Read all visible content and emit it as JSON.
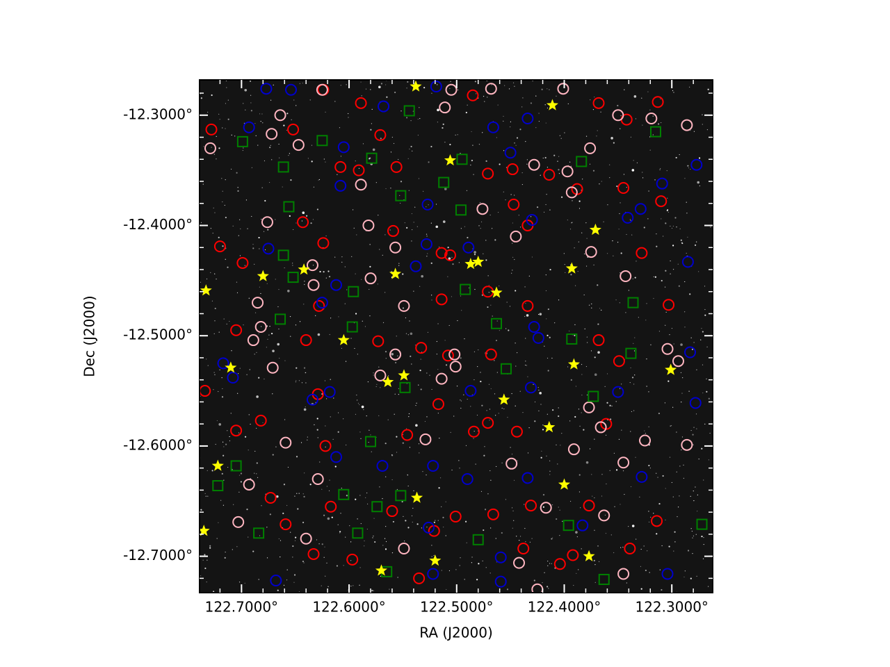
{
  "chart_data": {
    "type": "scatter",
    "x_label": "RA (J2000)",
    "y_label": "Dec (J2000)",
    "xlim": [
      122.739,
      122.262
    ],
    "ylim": [
      -12.733,
      -12.268
    ],
    "xticks": [
      {
        "value": 122.7,
        "label": "122.7000°"
      },
      {
        "value": 122.6,
        "label": "122.6000°"
      },
      {
        "value": 122.5,
        "label": "122.5000°"
      },
      {
        "value": 122.4,
        "label": "122.4000°"
      },
      {
        "value": 122.3,
        "label": "122.3000°"
      }
    ],
    "yticks": [
      {
        "value": -12.3,
        "label": "-12.3000°"
      },
      {
        "value": -12.4,
        "label": "-12.4000°"
      },
      {
        "value": -12.5,
        "label": "-12.5000°"
      },
      {
        "value": -12.6,
        "label": "-12.6000°"
      },
      {
        "value": -12.7,
        "label": "-12.7000°"
      }
    ],
    "background": "#141414",
    "series": [
      {
        "marker": "circle",
        "color": "#ff0000",
        "x": [
          122.624,
          122.589,
          122.485,
          122.368,
          122.313,
          122.342,
          122.652,
          122.728,
          122.571,
          122.591,
          122.608,
          122.556,
          122.471,
          122.448,
          122.414,
          122.388,
          122.447,
          122.345,
          122.31,
          122.643,
          122.624,
          122.559,
          122.514,
          122.506,
          122.434,
          122.328,
          122.699,
          122.72,
          122.628,
          122.514,
          122.471,
          122.434,
          122.303,
          122.705,
          122.64,
          122.573,
          122.533,
          122.508,
          122.468,
          122.368,
          122.349,
          122.734,
          122.629,
          122.517,
          122.484,
          122.444,
          122.361,
          122.705,
          122.682,
          122.622,
          122.546,
          122.471,
          122.673,
          122.617,
          122.56,
          122.501,
          122.466,
          122.431,
          122.377,
          122.314,
          122.659,
          122.521,
          122.438,
          122.404,
          122.339,
          122.597,
          122.535,
          122.392,
          122.633
        ],
        "y": [
          -12.277,
          -12.289,
          -12.282,
          -12.289,
          -12.288,
          -12.304,
          -12.313,
          -12.313,
          -12.318,
          -12.35,
          -12.347,
          -12.347,
          -12.353,
          -12.349,
          -12.354,
          -12.367,
          -12.381,
          -12.366,
          -12.378,
          -12.397,
          -12.416,
          -12.405,
          -12.425,
          -12.427,
          -12.4,
          -12.425,
          -12.434,
          -12.419,
          -12.473,
          -12.467,
          -12.46,
          -12.473,
          -12.472,
          -12.495,
          -12.504,
          -12.505,
          -12.511,
          -12.518,
          -12.517,
          -12.504,
          -12.523,
          -12.55,
          -12.553,
          -12.562,
          -12.587,
          -12.587,
          -12.58,
          -12.586,
          -12.577,
          -12.6,
          -12.59,
          -12.579,
          -12.647,
          -12.655,
          -12.659,
          -12.664,
          -12.662,
          -12.654,
          -12.654,
          -12.668,
          -12.671,
          -12.677,
          -12.693,
          -12.707,
          -12.693,
          -12.703,
          -12.72,
          -12.699,
          -12.698
        ]
      },
      {
        "marker": "circle",
        "color": "#0000cc",
        "x": [
          122.677,
          122.654,
          122.519,
          122.568,
          122.693,
          122.605,
          122.466,
          122.45,
          122.434,
          122.277,
          122.309,
          122.608,
          122.527,
          122.43,
          122.329,
          122.675,
          122.528,
          122.538,
          122.489,
          122.341,
          122.285,
          122.612,
          122.625,
          122.428,
          122.424,
          122.283,
          122.717,
          122.708,
          122.634,
          122.618,
          122.487,
          122.431,
          122.35,
          122.278,
          122.612,
          122.569,
          122.522,
          122.49,
          122.434,
          122.328,
          122.526,
          122.459,
          122.383,
          122.668,
          122.522,
          122.459,
          122.304
        ],
        "y": [
          -12.276,
          -12.277,
          -12.274,
          -12.292,
          -12.311,
          -12.329,
          -12.311,
          -12.334,
          -12.303,
          -12.345,
          -12.362,
          -12.364,
          -12.381,
          -12.395,
          -12.385,
          -12.421,
          -12.417,
          -12.437,
          -12.42,
          -12.393,
          -12.433,
          -12.454,
          -12.47,
          -12.492,
          -12.502,
          -12.515,
          -12.525,
          -12.538,
          -12.558,
          -12.551,
          -12.55,
          -12.547,
          -12.551,
          -12.561,
          -12.61,
          -12.618,
          -12.618,
          -12.63,
          -12.629,
          -12.628,
          -12.674,
          -12.701,
          -12.672,
          -12.722,
          -12.716,
          -12.723,
          -12.716
        ]
      },
      {
        "marker": "circle",
        "color": "#ffb6c1",
        "x": [
          122.625,
          122.505,
          122.468,
          122.401,
          122.664,
          122.511,
          122.672,
          122.729,
          122.647,
          122.35,
          122.319,
          122.286,
          122.376,
          122.589,
          122.428,
          122.397,
          122.476,
          122.393,
          122.676,
          122.582,
          122.445,
          122.557,
          122.634,
          122.633,
          122.58,
          122.375,
          122.343,
          122.685,
          122.549,
          122.682,
          122.689,
          122.557,
          122.502,
          122.304,
          122.294,
          122.501,
          122.571,
          122.514,
          122.671,
          122.377,
          122.366,
          122.659,
          122.529,
          122.391,
          122.345,
          122.325,
          122.286,
          122.629,
          122.693,
          122.449,
          122.417,
          122.363,
          122.703,
          122.64,
          122.549,
          122.442,
          122.345,
          122.425
        ],
        "y": [
          -12.277,
          -12.277,
          -12.276,
          -12.276,
          -12.3,
          -12.293,
          -12.317,
          -12.33,
          -12.327,
          -12.3,
          -12.303,
          -12.309,
          -12.33,
          -12.363,
          -12.345,
          -12.351,
          -12.385,
          -12.37,
          -12.397,
          -12.4,
          -12.41,
          -12.42,
          -12.436,
          -12.454,
          -12.448,
          -12.424,
          -12.446,
          -12.47,
          -12.473,
          -12.492,
          -12.504,
          -12.517,
          -12.517,
          -12.512,
          -12.523,
          -12.528,
          -12.536,
          -12.539,
          -12.529,
          -12.565,
          -12.583,
          -12.597,
          -12.594,
          -12.603,
          -12.615,
          -12.595,
          -12.599,
          -12.63,
          -12.635,
          -12.616,
          -12.656,
          -12.663,
          -12.669,
          -12.684,
          -12.693,
          -12.706,
          -12.716,
          -12.73
        ]
      },
      {
        "marker": "square",
        "color": "#008000",
        "x": [
          122.699,
          122.544,
          122.625,
          122.661,
          122.579,
          122.495,
          122.512,
          122.384,
          122.315,
          122.656,
          122.552,
          122.496,
          122.661,
          122.652,
          122.596,
          122.492,
          122.336,
          122.664,
          122.597,
          122.463,
          122.393,
          122.338,
          122.454,
          122.548,
          122.373,
          122.58,
          122.705,
          122.722,
          122.605,
          122.552,
          122.574,
          122.684,
          122.592,
          122.48,
          122.396,
          122.565,
          122.363,
          122.272
        ],
        "y": [
          -12.324,
          -12.296,
          -12.323,
          -12.347,
          -12.339,
          -12.34,
          -12.361,
          -12.342,
          -12.315,
          -12.383,
          -12.373,
          -12.386,
          -12.427,
          -12.447,
          -12.46,
          -12.458,
          -12.47,
          -12.485,
          -12.492,
          -12.489,
          -12.503,
          -12.516,
          -12.53,
          -12.547,
          -12.555,
          -12.596,
          -12.618,
          -12.636,
          -12.644,
          -12.645,
          -12.655,
          -12.679,
          -12.679,
          -12.685,
          -12.672,
          -12.714,
          -12.721,
          -12.671
        ]
      },
      {
        "marker": "star",
        "color": "#ffff00",
        "x": [
          122.538,
          122.411,
          122.506,
          122.371,
          122.733,
          122.68,
          122.642,
          122.557,
          122.487,
          122.48,
          122.463,
          122.393,
          122.605,
          122.71,
          122.549,
          122.564,
          122.391,
          122.301,
          122.456,
          122.414,
          122.722,
          122.537,
          122.4,
          122.735,
          122.52,
          122.57,
          122.377
        ],
        "y": [
          -12.274,
          -12.291,
          -12.341,
          -12.404,
          -12.459,
          -12.446,
          -12.44,
          -12.444,
          -12.435,
          -12.433,
          -12.461,
          -12.439,
          -12.504,
          -12.529,
          -12.536,
          -12.542,
          -12.526,
          -12.531,
          -12.558,
          -12.583,
          -12.618,
          -12.647,
          -12.635,
          -12.677,
          -12.704,
          -12.713,
          -12.7
        ]
      }
    ]
  }
}
